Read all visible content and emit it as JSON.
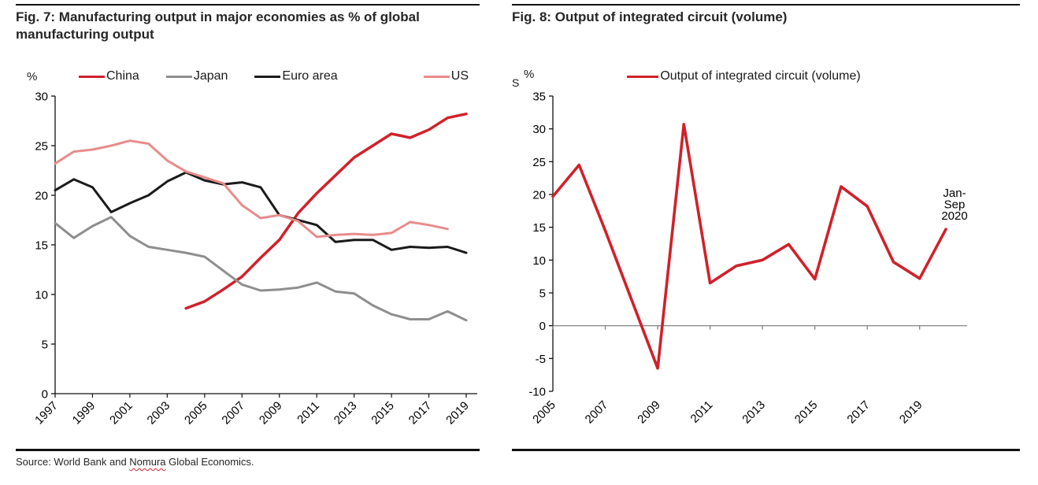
{
  "page": {
    "background": "#ffffff",
    "rule_color": "#111111"
  },
  "fig7": {
    "title": "Fig. 7: Manufacturing output in major economies as % of global manufacturing output",
    "unit_label": "%",
    "source_prefix": "Source: World Bank and ",
    "source_highlight": "Nomura",
    "source_suffix": " Global Economics."
  },
  "fig8": {
    "title": "Fig. 8: Output of integrated circuit (volume)",
    "unit_label": "%",
    "clipped_fragment": "S",
    "annotation_text": "Jan-Sep 2020",
    "annotation_lines": [
      "Jan-",
      "Sep",
      "2020"
    ]
  },
  "chart_data": [
    {
      "type": "line",
      "title": "Fig. 7: Manufacturing output in major economies as % of global manufacturing output",
      "xlabel": "",
      "ylabel": "%",
      "ylim": [
        0,
        30
      ],
      "yticks": [
        0,
        5,
        10,
        15,
        20,
        25,
        30
      ],
      "xlim": [
        1997,
        2019
      ],
      "xticks": [
        1997,
        1999,
        2001,
        2003,
        2005,
        2007,
        2009,
        2011,
        2013,
        2015,
        2017,
        2019
      ],
      "grid": false,
      "legend_position": "top",
      "legend": [
        "China",
        "Japan",
        "Euro area",
        "US"
      ],
      "series": [
        {
          "name": "China",
          "color": "#d0212a",
          "stroke_width": 3.5,
          "x_start": 2004,
          "values": [
            8.6,
            9.3,
            10.5,
            11.8,
            13.7,
            15.5,
            18.2,
            20.2,
            22.0,
            23.8,
            25.0,
            26.2,
            25.8,
            26.6,
            27.8,
            28.2
          ]
        },
        {
          "name": "Japan",
          "color": "#8e8e8e",
          "stroke_width": 3.0,
          "x_start": 1997,
          "values": [
            17.2,
            15.7,
            16.9,
            17.8,
            15.9,
            14.8,
            14.5,
            14.2,
            13.8,
            12.4,
            11.0,
            10.4,
            10.5,
            10.7,
            11.2,
            10.3,
            10.1,
            8.9,
            8.0,
            7.5,
            7.5,
            8.3,
            7.4
          ]
        },
        {
          "name": "Euro area",
          "color": "#1a1a1a",
          "stroke_width": 3.0,
          "x_start": 1997,
          "values": [
            20.5,
            21.6,
            20.8,
            18.3,
            19.2,
            20.0,
            21.4,
            22.3,
            21.5,
            21.1,
            21.3,
            20.8,
            18.0,
            17.5,
            17.0,
            15.3,
            15.5,
            15.5,
            14.5,
            14.8,
            14.7,
            14.8,
            14.2
          ]
        },
        {
          "name": "US",
          "color": "#e98b8b",
          "stroke_width": 3.0,
          "x_start": 1997,
          "values": [
            23.2,
            24.4,
            24.6,
            25.0,
            25.5,
            25.2,
            23.5,
            22.4,
            21.8,
            21.2,
            19.0,
            17.7,
            18.0,
            17.4,
            15.8,
            16.0,
            16.1,
            16.0,
            16.2,
            17.3,
            17.0,
            16.6
          ]
        }
      ],
      "source": "Source: World Bank and Nomura Global Economics."
    },
    {
      "type": "line",
      "title": "Fig. 8: Output of integrated circuit (volume)",
      "xlabel": "",
      "ylabel": "%",
      "ylim": [
        -10,
        35
      ],
      "yticks": [
        -10,
        -5,
        0,
        5,
        10,
        15,
        20,
        25,
        30,
        35
      ],
      "xlim": [
        2005,
        2020
      ],
      "xticks": [
        2005,
        2007,
        2009,
        2011,
        2013,
        2015,
        2017,
        2019
      ],
      "grid": false,
      "legend_position": "top",
      "legend": [
        "Output of integrated circuit (volume)"
      ],
      "annotation": "Jan-Sep 2020",
      "series": [
        {
          "name": "Output of integrated circuit (volume)",
          "color": "#d0212a",
          "stroke_width": 3.6,
          "x_start": 2005,
          "values": [
            19.7,
            24.5,
            14.5,
            4.0,
            -6.5,
            30.7,
            6.5,
            9.1,
            10.0,
            12.4,
            7.1,
            21.2,
            18.2,
            9.7,
            7.2,
            14.7
          ]
        }
      ]
    }
  ]
}
